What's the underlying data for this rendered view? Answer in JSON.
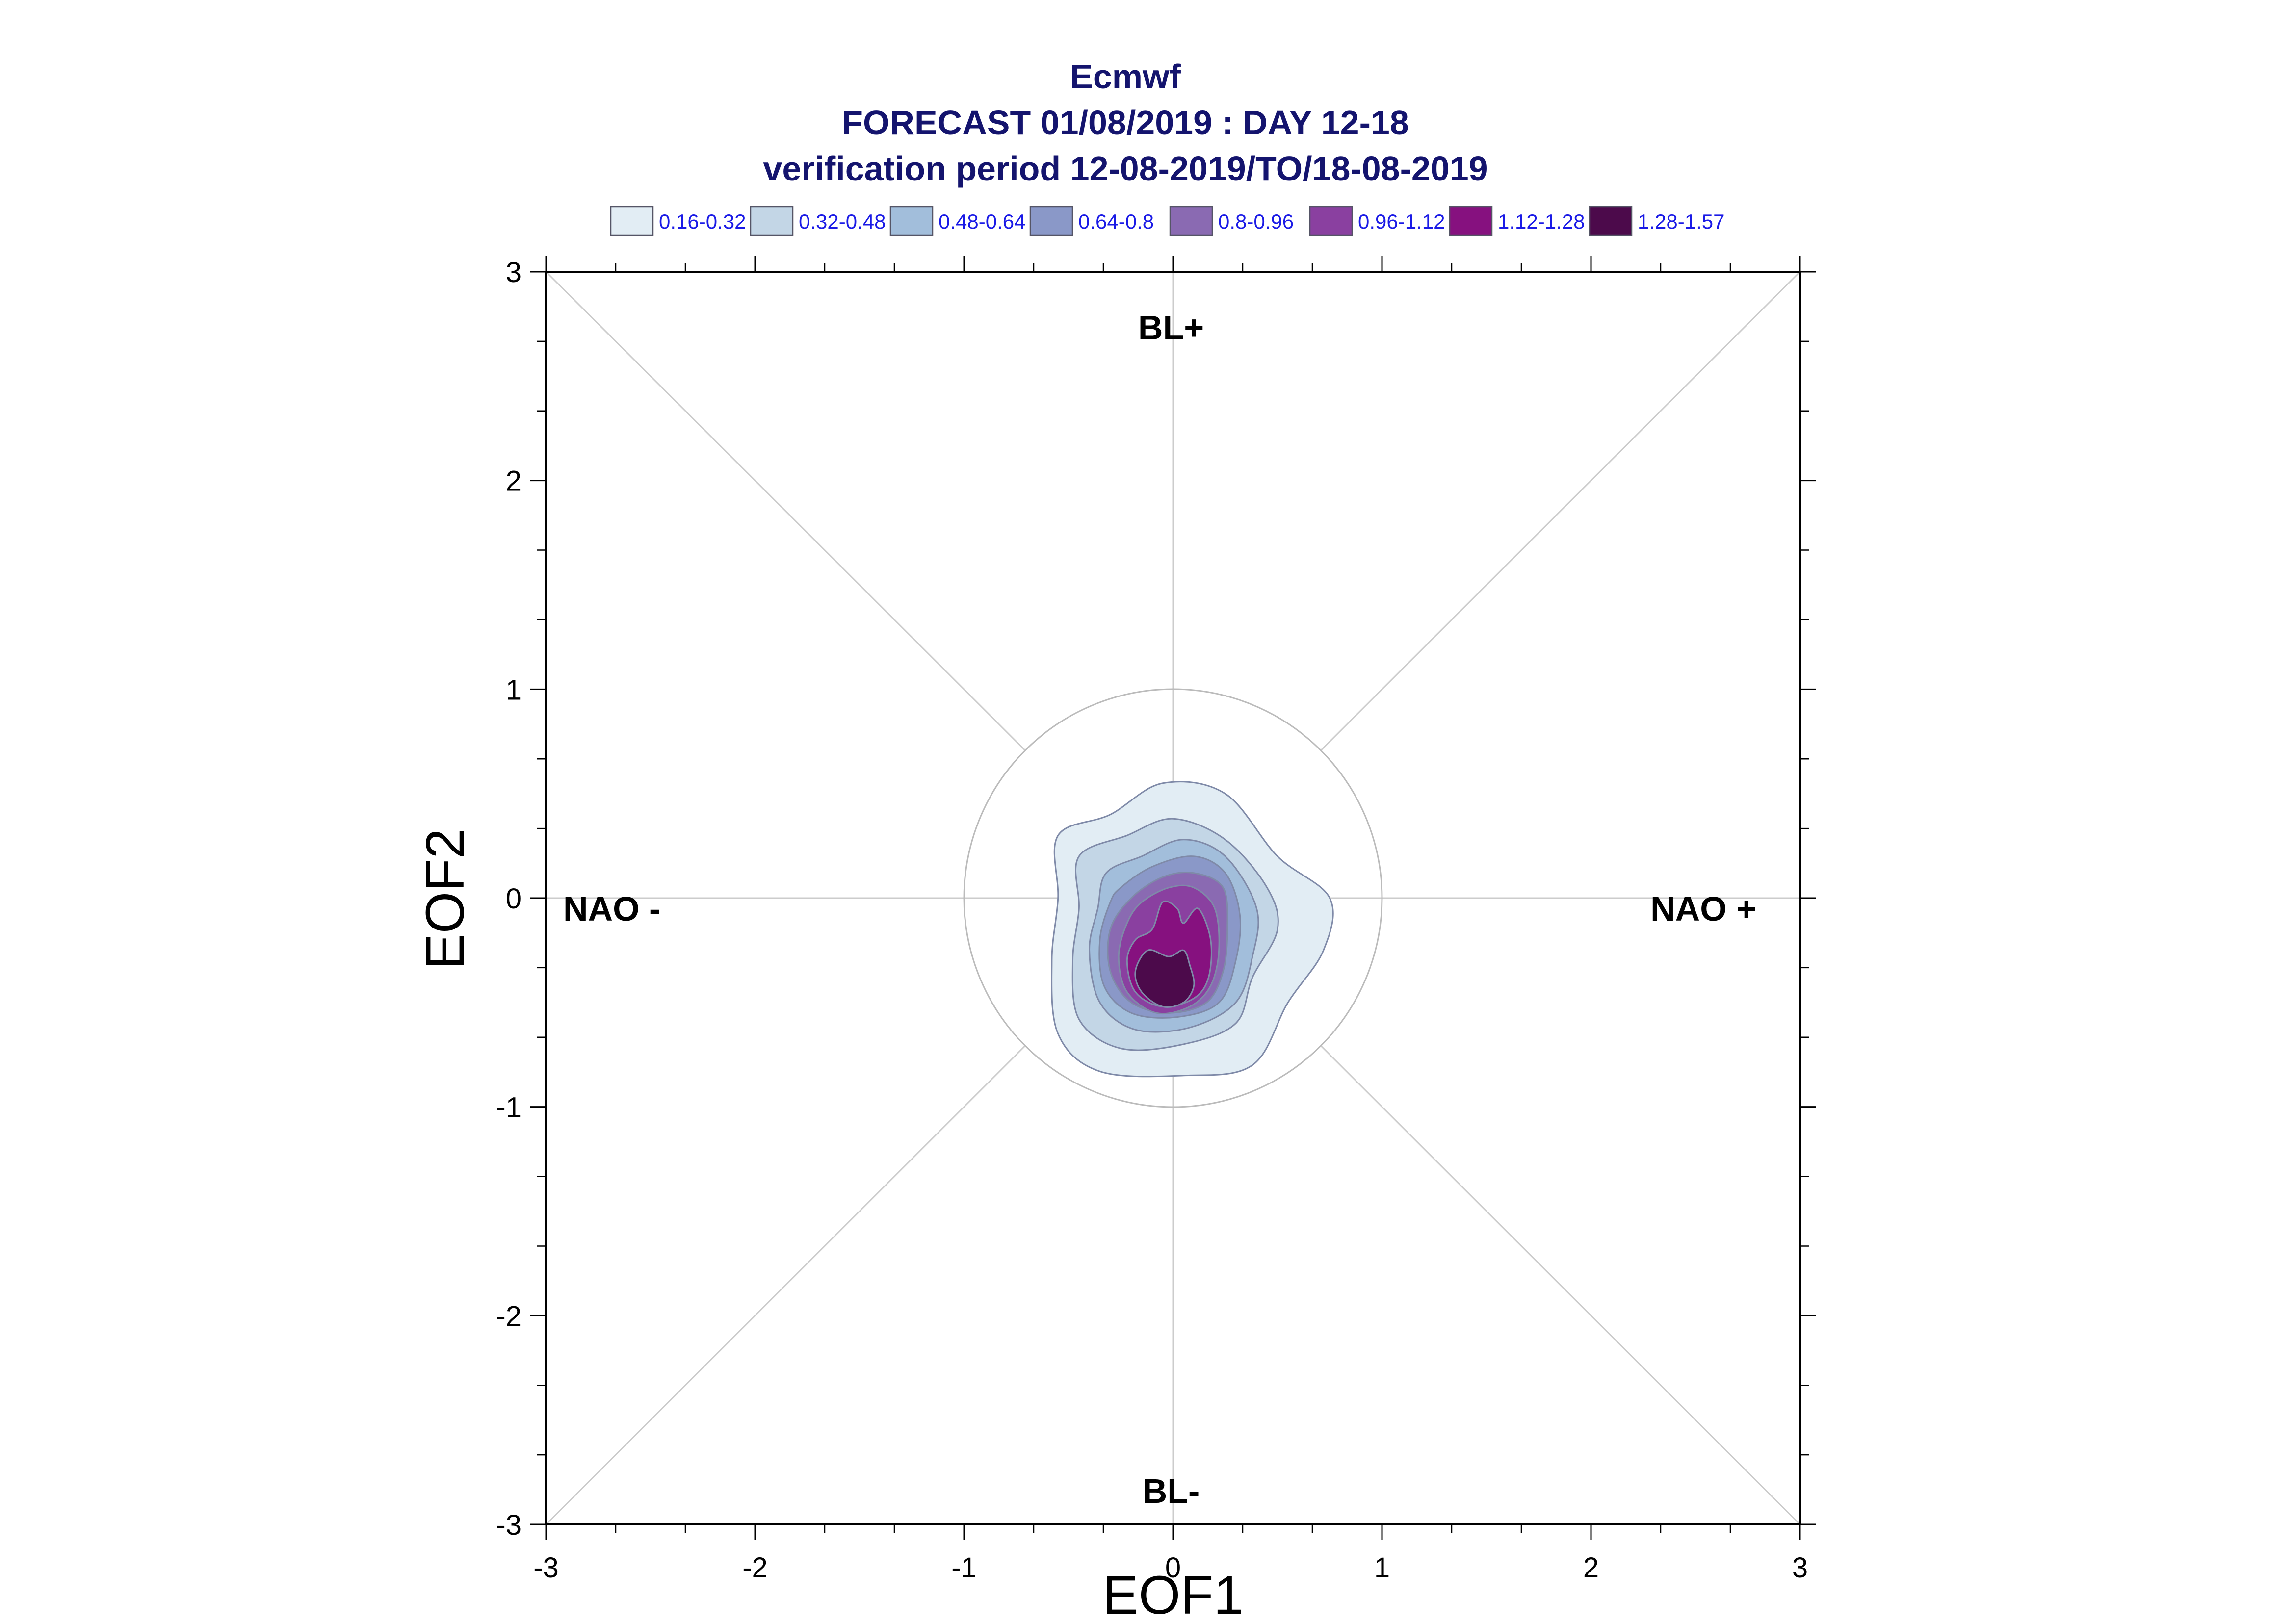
{
  "titles": {
    "line1": "Ecmwf",
    "line2": "FORECAST 01/08/2019 : DAY 12-18",
    "line3": "verification period 12-08-2019/TO/18-08-2019"
  },
  "regime_labels": {
    "top": "BL+",
    "bottom": "BL-",
    "left": "NAO -",
    "right": "NAO +"
  },
  "chart_data": {
    "type": "contour",
    "xlabel": "EOF1",
    "ylabel": "EOF2",
    "xlim": [
      -3,
      3
    ],
    "ylim": [
      -3,
      3
    ],
    "xticks": [
      "-3",
      "-2",
      "-1",
      "0",
      "1",
      "2",
      "3"
    ],
    "yticks": [
      "-3",
      "-2",
      "-1",
      "0",
      "1",
      "2",
      "3"
    ],
    "reference_circle_radius": 1,
    "legend": [
      {
        "label": "0.16-0.32",
        "color": "#e2edf4"
      },
      {
        "label": "0.32-0.48",
        "color": "#c3d6e6"
      },
      {
        "label": "0.48-0.64",
        "color": "#a2bedb"
      },
      {
        "label": "0.64-0.8",
        "color": "#8a98c8"
      },
      {
        "label": "0.8-0.96",
        "color": "#8a6ab2"
      },
      {
        "label": "0.96-1.12",
        "color": "#8a40a0"
      },
      {
        "label": "1.12-1.28",
        "color": "#86117f"
      },
      {
        "label": "1.28-1.57",
        "color": "#4c0a4b"
      }
    ],
    "contour_levels": [
      {
        "level": "0.16-0.32",
        "color": "#e2edf4",
        "points": [
          [
            -0.55,
            0.3
          ],
          [
            -0.3,
            0.4
          ],
          [
            -0.05,
            0.55
          ],
          [
            0.25,
            0.5
          ],
          [
            0.5,
            0.2
          ],
          [
            0.75,
            0.0
          ],
          [
            0.72,
            -0.25
          ],
          [
            0.55,
            -0.5
          ],
          [
            0.38,
            -0.8
          ],
          [
            0.05,
            -0.85
          ],
          [
            -0.35,
            -0.83
          ],
          [
            -0.55,
            -0.65
          ],
          [
            -0.58,
            -0.3
          ],
          [
            -0.55,
            0.0
          ]
        ]
      },
      {
        "level": "0.32-0.48",
        "color": "#c3d6e6",
        "points": [
          [
            -0.45,
            0.2
          ],
          [
            -0.22,
            0.3
          ],
          [
            0.0,
            0.38
          ],
          [
            0.25,
            0.28
          ],
          [
            0.45,
            0.05
          ],
          [
            0.5,
            -0.15
          ],
          [
            0.38,
            -0.38
          ],
          [
            0.3,
            -0.6
          ],
          [
            0.05,
            -0.7
          ],
          [
            -0.25,
            -0.72
          ],
          [
            -0.45,
            -0.58
          ],
          [
            -0.48,
            -0.3
          ],
          [
            -0.45,
            -0.05
          ]
        ]
      },
      {
        "level": "0.48-0.64",
        "color": "#a2bedb",
        "points": [
          [
            -0.32,
            0.12
          ],
          [
            -0.15,
            0.2
          ],
          [
            0.05,
            0.28
          ],
          [
            0.25,
            0.2
          ],
          [
            0.4,
            -0.05
          ],
          [
            0.38,
            -0.28
          ],
          [
            0.3,
            -0.5
          ],
          [
            0.08,
            -0.62
          ],
          [
            -0.18,
            -0.63
          ],
          [
            -0.35,
            -0.5
          ],
          [
            -0.4,
            -0.25
          ],
          [
            -0.36,
            -0.05
          ]
        ]
      },
      {
        "level": "0.64-0.8",
        "color": "#8a98c8",
        "points": [
          [
            -0.25,
            0.05
          ],
          [
            -0.1,
            0.15
          ],
          [
            0.1,
            0.2
          ],
          [
            0.25,
            0.12
          ],
          [
            0.32,
            -0.08
          ],
          [
            0.3,
            -0.3
          ],
          [
            0.22,
            -0.5
          ],
          [
            0.02,
            -0.57
          ],
          [
            -0.2,
            -0.55
          ],
          [
            -0.33,
            -0.42
          ],
          [
            -0.35,
            -0.2
          ],
          [
            -0.3,
            -0.02
          ]
        ]
      },
      {
        "level": "0.8-0.96",
        "color": "#8a6ab2",
        "points": [
          [
            -0.2,
            0.0
          ],
          [
            -0.05,
            0.1
          ],
          [
            0.1,
            0.12
          ],
          [
            0.24,
            0.05
          ],
          [
            0.26,
            -0.15
          ],
          [
            0.24,
            -0.35
          ],
          [
            0.16,
            -0.5
          ],
          [
            -0.02,
            -0.55
          ],
          [
            -0.2,
            -0.5
          ],
          [
            -0.3,
            -0.35
          ],
          [
            -0.3,
            -0.15
          ]
        ]
      },
      {
        "level": "0.96-1.12",
        "color": "#8a40a0",
        "points": [
          [
            -0.15,
            -0.02
          ],
          [
            -0.02,
            0.05
          ],
          [
            0.1,
            0.05
          ],
          [
            0.2,
            -0.05
          ],
          [
            0.22,
            -0.25
          ],
          [
            0.18,
            -0.42
          ],
          [
            0.08,
            -0.52
          ],
          [
            -0.08,
            -0.55
          ],
          [
            -0.22,
            -0.45
          ],
          [
            -0.26,
            -0.28
          ],
          [
            -0.22,
            -0.12
          ]
        ]
      },
      {
        "level": "1.12-1.28",
        "color": "#86117f",
        "points": [
          [
            -0.05,
            -0.02
          ],
          [
            0.02,
            -0.05
          ],
          [
            0.05,
            -0.12
          ],
          [
            0.12,
            -0.05
          ],
          [
            0.18,
            -0.2
          ],
          [
            0.17,
            -0.38
          ],
          [
            0.1,
            -0.48
          ],
          [
            -0.05,
            -0.52
          ],
          [
            -0.18,
            -0.45
          ],
          [
            -0.22,
            -0.3
          ],
          [
            -0.18,
            -0.2
          ],
          [
            -0.1,
            -0.15
          ]
        ]
      },
      {
        "level": "1.28-1.57",
        "color": "#4c0a4b",
        "points": [
          [
            -0.12,
            -0.25
          ],
          [
            -0.02,
            -0.28
          ],
          [
            0.05,
            -0.25
          ],
          [
            0.08,
            -0.32
          ],
          [
            0.1,
            -0.42
          ],
          [
            0.05,
            -0.5
          ],
          [
            -0.05,
            -0.52
          ],
          [
            -0.15,
            -0.45
          ],
          [
            -0.18,
            -0.35
          ]
        ]
      }
    ]
  }
}
